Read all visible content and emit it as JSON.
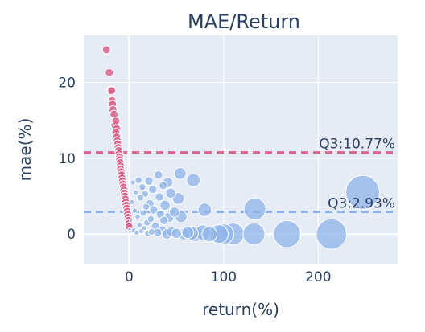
{
  "chart_data": {
    "type": "scatter",
    "title": "MAE/Return",
    "xlabel": "return(%)",
    "ylabel": "mae(%)",
    "xlim": [
      -48,
      284
    ],
    "ylim": [
      -3.9,
      26.2
    ],
    "xticks": [
      0,
      100,
      200
    ],
    "yticks": [
      0,
      10,
      20
    ],
    "grid": true,
    "colors": {
      "plot_bg": "#e5ecf6",
      "grid": "#ffffff",
      "text": "#2a3f5f",
      "loss": "#d9648c",
      "gain": "#8fb4e8",
      "marker_edge": "#ffffff"
    },
    "reference_lines": [
      {
        "label": "Q3:10.77%",
        "y": 10.77,
        "color": "#d9648c",
        "style": "dashed"
      },
      {
        "label": "Q3:2.93%",
        "y": 2.93,
        "color": "#8fb4e8",
        "style": "dashed"
      }
    ],
    "series": [
      {
        "group": "loss",
        "points": [
          [
            -24,
            24.3
          ],
          [
            -21,
            21.3
          ],
          [
            -19,
            19.0
          ],
          [
            -18.5,
            18.9
          ],
          [
            -18,
            17.6
          ],
          [
            -17.5,
            17.1
          ],
          [
            -17,
            16.4
          ],
          [
            -16,
            15.8
          ],
          [
            -15,
            14.4
          ],
          [
            -14,
            14.9
          ],
          [
            -13,
            13.9
          ],
          [
            -14,
            13.4
          ],
          [
            -13,
            12.8
          ],
          [
            -12.5,
            12.3
          ],
          [
            -12,
            11.9
          ],
          [
            -11.5,
            11.4
          ],
          [
            -11,
            11.0
          ],
          [
            -10.5,
            10.6
          ],
          [
            -10,
            10.2
          ],
          [
            -10,
            9.8
          ],
          [
            -9.5,
            9.4
          ],
          [
            -9,
            9.0
          ],
          [
            -9,
            8.6
          ],
          [
            -8.5,
            8.2
          ],
          [
            -8,
            7.8
          ],
          [
            -7.5,
            7.4
          ],
          [
            -7,
            7.0
          ],
          [
            -6.5,
            6.6
          ],
          [
            -6,
            6.2
          ],
          [
            -5.5,
            5.8
          ],
          [
            -5,
            5.4
          ],
          [
            -4.5,
            5.0
          ],
          [
            -4,
            4.6
          ],
          [
            -3.5,
            4.2
          ],
          [
            -3,
            3.8
          ],
          [
            -2.5,
            3.4
          ],
          [
            -2,
            3.0
          ],
          [
            -1.5,
            2.6
          ],
          [
            -1,
            2.2
          ],
          [
            -0.5,
            1.8
          ],
          [
            -0.3,
            1.4
          ],
          [
            -0.1,
            1.0
          ]
        ]
      },
      {
        "group": "gain",
        "points": [
          [
            0.5,
            0.6,
            2
          ],
          [
            1,
            0.3,
            2
          ],
          [
            2,
            1.8,
            2
          ],
          [
            3,
            4.2,
            3
          ],
          [
            4,
            6.8,
            3
          ],
          [
            5,
            0.5,
            3
          ],
          [
            6,
            3.1,
            3
          ],
          [
            7,
            5.5,
            3
          ],
          [
            8,
            0.2,
            3
          ],
          [
            9,
            2.3,
            3
          ],
          [
            10,
            7.1,
            4
          ],
          [
            11,
            1.2,
            3
          ],
          [
            12,
            4.8,
            4
          ],
          [
            13,
            0.4,
            3
          ],
          [
            14,
            6.2,
            4
          ],
          [
            15,
            2.8,
            4
          ],
          [
            16,
            0.8,
            3
          ],
          [
            17,
            5.3,
            4
          ],
          [
            18,
            3.6,
            4
          ],
          [
            19,
            1.5,
            4
          ],
          [
            20,
            0.1,
            4
          ],
          [
            21,
            7.0,
            5
          ],
          [
            22,
            4.0,
            5
          ],
          [
            23,
            2.0,
            4
          ],
          [
            24,
            0.3,
            4
          ],
          [
            25,
            5.9,
            5
          ],
          [
            26,
            3.2,
            5
          ],
          [
            28,
            1.0,
            5
          ],
          [
            30,
            0.2,
            5
          ],
          [
            31,
            7.8,
            5
          ],
          [
            32,
            4.9,
            5
          ],
          [
            33,
            2.6,
            5
          ],
          [
            35,
            0.4,
            6
          ],
          [
            36,
            6.4,
            5
          ],
          [
            37,
            1.8,
            5
          ],
          [
            38,
            3.8,
            6
          ],
          [
            40,
            0.0,
            6
          ],
          [
            41,
            6.8,
            6
          ],
          [
            42,
            2.2,
            6
          ],
          [
            44,
            5.4,
            6
          ],
          [
            45,
            0.3,
            6
          ],
          [
            48,
            2.9,
            6
          ],
          [
            50,
            0.1,
            6
          ],
          [
            52,
            4.7,
            7
          ],
          [
            54,
            8.0,
            7
          ],
          [
            55,
            2.3,
            7
          ],
          [
            58,
            0.0,
            7
          ],
          [
            62,
            0.2,
            7
          ],
          [
            66,
            0.1,
            8
          ],
          [
            68,
            7.1,
            8
          ],
          [
            70,
            0.0,
            9
          ],
          [
            78,
            0.2,
            9
          ],
          [
            80,
            3.2,
            8
          ],
          [
            85,
            0.0,
            9
          ],
          [
            95,
            0.0,
            11
          ],
          [
            100,
            0.0,
            12
          ],
          [
            110,
            0.0,
            13
          ],
          [
            132,
            0.0,
            13
          ],
          [
            133,
            3.3,
            13
          ],
          [
            167,
            0.0,
            16
          ],
          [
            214,
            0.0,
            18
          ],
          [
            247,
            5.5,
            20
          ]
        ]
      }
    ]
  }
}
